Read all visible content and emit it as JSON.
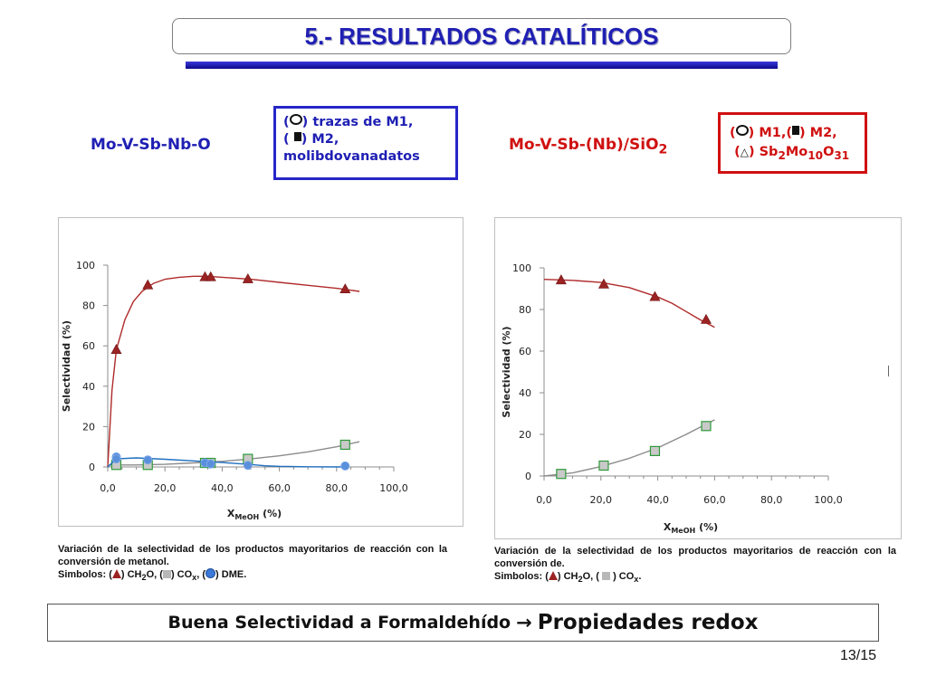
{
  "title": "5.- RESULTADOS CATALÍTICOS",
  "system_left": "Mo-V-Sb-Nb-O",
  "system_right": {
    "main": "Mo-V-Sb-(Nb)/SiO",
    "sub": "2"
  },
  "legend_left": {
    "line1_open": "(",
    "line1_text": ") trazas de M1,",
    "line2_open": "(",
    "line2_text": ") M2,",
    "line3_text": "molibdovanadatos"
  },
  "legend_right": {
    "line1_open": "(",
    "line1_mid": ") M1,(",
    "line1_end": ") M2,",
    "line2_open": "(",
    "line2_mid": ") Sb",
    "sub1": "2",
    "mid2": "Mo",
    "sub2": "10",
    "mid3": "O",
    "sub3": "31"
  },
  "chart_data": [
    {
      "type": "scatter",
      "ylabel": "Selectividad (%)",
      "xlabel": "X",
      "xlabel_sub": "MeOH",
      "xlabel_end": " (%)",
      "xlim": [
        0,
        100
      ],
      "ylim": [
        0,
        100
      ],
      "x_ticks": [
        "0,0",
        "20,0",
        "40,0",
        "60,0",
        "80,0",
        "100,0"
      ],
      "y_ticks": [
        "0",
        "20",
        "40",
        "60",
        "80",
        "100"
      ],
      "series": [
        {
          "marker": "triangle",
          "color": "#9b2323",
          "x": [
            3,
            14,
            34,
            36,
            49,
            83
          ],
          "y": [
            58,
            90,
            94,
            94,
            93,
            88
          ],
          "fit_x": [
            0,
            1.5,
            3,
            6,
            9,
            12,
            16,
            20,
            25,
            30,
            35,
            40,
            50,
            60,
            70,
            80,
            88
          ],
          "fit_y": [
            0,
            38,
            58,
            73,
            82,
            87,
            91,
            93,
            94,
            94.5,
            94.5,
            94,
            93,
            91.5,
            90,
            88.5,
            87
          ]
        },
        {
          "marker": "square",
          "color": "#b8b8b8",
          "x": [
            3,
            14,
            34,
            36,
            49,
            83
          ],
          "y": [
            1,
            1,
            2,
            2,
            4,
            11
          ],
          "fit_x": [
            0,
            10,
            20,
            30,
            40,
            50,
            60,
            70,
            80,
            88
          ],
          "fit_y": [
            1,
            1,
            1.3,
            2,
            2.8,
            4,
            5.5,
            7.5,
            10,
            12.5
          ]
        },
        {
          "marker": "circle",
          "color": "#3c78d8",
          "x": [
            3,
            3,
            14,
            34,
            36,
            49,
            83
          ],
          "y": [
            5,
            4,
            3.5,
            2,
            1.5,
            0.8,
            0.5
          ],
          "fit_x": [
            0,
            3,
            10,
            20,
            30,
            40,
            50,
            55,
            60,
            70,
            83
          ],
          "fit_y": [
            0,
            4,
            4.5,
            3.8,
            3,
            2.2,
            1.2,
            0.6,
            0.3,
            0.1,
            0
          ]
        }
      ]
    },
    {
      "type": "scatter",
      "ylabel": "Selectividad (%)",
      "xlabel": "X",
      "xlabel_sub": "MeOH",
      "xlabel_end": " (%)",
      "xlim": [
        0,
        100
      ],
      "ylim": [
        0,
        100
      ],
      "x_ticks": [
        "0,0",
        "20,0",
        "40,0",
        "60,0",
        "80,0",
        "100,0"
      ],
      "y_ticks": [
        "0",
        "20",
        "40",
        "60",
        "80",
        "100"
      ],
      "series": [
        {
          "marker": "triangle",
          "color": "#9b2323",
          "x": [
            6,
            21,
            39,
            57
          ],
          "y": [
            94,
            92,
            86,
            75
          ],
          "fit_x": [
            0,
            10,
            20,
            30,
            40,
            45,
            50,
            55,
            60
          ],
          "fit_y": [
            94.5,
            94,
            93,
            90.5,
            86,
            83,
            79,
            75,
            71.5
          ]
        },
        {
          "marker": "square",
          "color": "#b8b8b8",
          "x": [
            6,
            21,
            39,
            57
          ],
          "y": [
            1,
            5,
            12,
            24
          ],
          "fit_x": [
            0,
            10,
            20,
            30,
            40,
            50,
            60
          ],
          "fit_y": [
            0,
            1.5,
            4.5,
            8.5,
            13.5,
            20,
            27
          ]
        }
      ]
    }
  ],
  "caption_left": {
    "line1": "Variación de la selectividad de los productos mayoritarios de reacción con la conversión de metanol.",
    "sim_label": "Simbolos: (",
    "sim_t1": ") CH",
    "sim_sub1": "2",
    "sim_t2": "O, (",
    "sim_t3": ") CO",
    "sim_sub2": "x",
    "sim_t4": ", (",
    "sim_t5": ") DME."
  },
  "caption_right": {
    "line1": "Variación de la selectividad de los productos mayoritarios de reacción con la conversión de.",
    "sim_label": "Simbolos: (",
    "sim_t1": ") CH",
    "sim_sub1": "2",
    "sim_t2": "O, (",
    "sim_t3": ") CO",
    "sim_sub2": "x",
    "sim_t4": "."
  },
  "bottom": {
    "part1": "Buena Selectividad a Formaldehído",
    "arrow": "→",
    "part2": "Propiedades redox"
  },
  "page_number": "13/15"
}
